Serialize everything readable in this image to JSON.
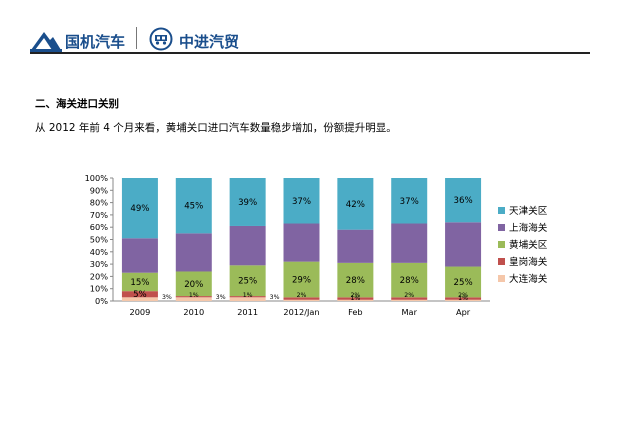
{
  "header": {
    "brand_left": "国机汽车",
    "brand_right": "中进汽贸",
    "icons": [
      "mountain-logo-icon",
      "truck-emblem-icon"
    ]
  },
  "section_title": "二、海关进口关别",
  "intro_text": "从 2012 年前 4 个月来看，黄埔关口进口汽车数量稳步增加，份额提升明显。",
  "chart_data": {
    "type": "bar",
    "stacked": true,
    "percent": true,
    "categories": [
      "2009",
      "2010",
      "2011",
      "2012/Jan",
      "Feb",
      "Mar",
      "Apr"
    ],
    "ylim": [
      0,
      100
    ],
    "yticks": [
      "0%",
      "10%",
      "20%",
      "30%",
      "40%",
      "50%",
      "60%",
      "70%",
      "80%",
      "90%",
      "100%"
    ],
    "legend_position": "right",
    "series": [
      {
        "name": "大连海关",
        "color": "#f5c7aa",
        "values": [
          3,
          3,
          3,
          1,
          1,
          1,
          1
        ]
      },
      {
        "name": "皇岗海关",
        "color": "#c0504d",
        "values": [
          5,
          1,
          1,
          2,
          2,
          2,
          2
        ]
      },
      {
        "name": "黄埔关区",
        "color": "#9bbb59",
        "values": [
          15,
          20,
          25,
          29,
          28,
          28,
          25
        ]
      },
      {
        "name": "上海海关",
        "color": "#8064a2",
        "values": [
          28,
          31,
          32,
          31,
          27,
          32,
          36
        ]
      },
      {
        "name": "天津关区",
        "color": "#4bacc6",
        "values": [
          49,
          45,
          39,
          37,
          42,
          37,
          36
        ]
      }
    ],
    "labels": [
      {
        "series": 4,
        "cat": 0,
        "text": "49%"
      },
      {
        "series": 4,
        "cat": 1,
        "text": "45%"
      },
      {
        "series": 4,
        "cat": 2,
        "text": "39%"
      },
      {
        "series": 4,
        "cat": 3,
        "text": "37%"
      },
      {
        "series": 4,
        "cat": 4,
        "text": "42%"
      },
      {
        "series": 4,
        "cat": 5,
        "text": "37%"
      },
      {
        "series": 4,
        "cat": 6,
        "text": "36%"
      },
      {
        "series": 2,
        "cat": 0,
        "text": "15%"
      },
      {
        "series": 2,
        "cat": 1,
        "text": "20%"
      },
      {
        "series": 2,
        "cat": 2,
        "text": "25%"
      },
      {
        "series": 2,
        "cat": 3,
        "text": "29%"
      },
      {
        "series": 2,
        "cat": 4,
        "text": "28%"
      },
      {
        "series": 2,
        "cat": 5,
        "text": "28%"
      },
      {
        "series": 2,
        "cat": 6,
        "text": "25%"
      },
      {
        "series": 1,
        "cat": 0,
        "text": "5%"
      },
      {
        "series": 1,
        "cat": 1,
        "text": "1%"
      },
      {
        "series": 1,
        "cat": 2,
        "text": "1%"
      },
      {
        "series": 1,
        "cat": 3,
        "text": "2%"
      },
      {
        "series": 1,
        "cat": 4,
        "text": "2%"
      },
      {
        "series": 1,
        "cat": 5,
        "text": "2%"
      },
      {
        "series": 1,
        "cat": 6,
        "text": "2%"
      },
      {
        "series": 0,
        "cat": 0,
        "text": "3%",
        "side": true
      },
      {
        "series": 0,
        "cat": 1,
        "text": "3%",
        "side": true
      },
      {
        "series": 0,
        "cat": 2,
        "text": "3%",
        "side": true
      },
      {
        "series": 0,
        "cat": 4,
        "text": "1%"
      },
      {
        "series": 0,
        "cat": 6,
        "text": "1%"
      }
    ]
  }
}
